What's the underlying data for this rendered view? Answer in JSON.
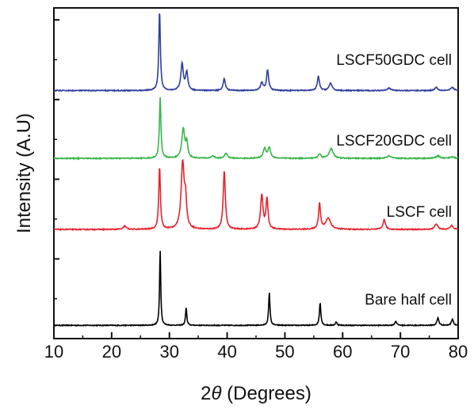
{
  "chart_data": {
    "type": "line",
    "xlabel": "2θ (Degrees)",
    "xlabel_prefix": "2",
    "xlabel_italic": "θ",
    "xlabel_suffix": " (Degrees)",
    "ylabel": "Intensity (A.U)",
    "xlim": [
      10,
      80
    ],
    "x_ticks": [
      10,
      20,
      30,
      40,
      50,
      60,
      70,
      80
    ],
    "y_ticks_shown_as_labels": false,
    "grid": false,
    "legend": "labels above each trace",
    "series": [
      {
        "name": "Bare half cell",
        "color": "#000000",
        "baseline_fraction": 0.04,
        "noise": 0.005,
        "peaks": [
          {
            "x": 28.4,
            "h": 0.93,
            "w": 0.12
          },
          {
            "x": 32.9,
            "h": 0.22,
            "w": 0.13
          },
          {
            "x": 47.3,
            "h": 0.4,
            "w": 0.14
          },
          {
            "x": 56.1,
            "h": 0.28,
            "w": 0.15
          },
          {
            "x": 58.9,
            "h": 0.04,
            "w": 0.18
          },
          {
            "x": 69.2,
            "h": 0.05,
            "w": 0.2
          },
          {
            "x": 76.5,
            "h": 0.09,
            "w": 0.2
          },
          {
            "x": 79.0,
            "h": 0.08,
            "w": 0.2
          }
        ]
      },
      {
        "name": "LSCF cell",
        "color": "#e8212a",
        "baseline_fraction": 0.33,
        "noise": 0.006,
        "peaks": [
          {
            "x": 22.3,
            "h": 0.04,
            "w": 0.3
          },
          {
            "x": 28.3,
            "h": 0.77,
            "w": 0.17
          },
          {
            "x": 32.3,
            "h": 0.82,
            "w": 0.32
          },
          {
            "x": 32.8,
            "h": 0.3,
            "w": 0.2
          },
          {
            "x": 39.5,
            "h": 0.72,
            "w": 0.22
          },
          {
            "x": 46.0,
            "h": 0.42,
            "w": 0.25
          },
          {
            "x": 46.9,
            "h": 0.38,
            "w": 0.2
          },
          {
            "x": 56.0,
            "h": 0.32,
            "w": 0.2
          },
          {
            "x": 57.5,
            "h": 0.14,
            "w": 0.5
          },
          {
            "x": 67.2,
            "h": 0.12,
            "w": 0.25
          },
          {
            "x": 76.2,
            "h": 0.07,
            "w": 0.3
          },
          {
            "x": 78.9,
            "h": 0.05,
            "w": 0.3
          }
        ]
      },
      {
        "name": "LSCF20GDC cell",
        "color": "#39b54a",
        "baseline_fraction": 0.545,
        "noise": 0.006,
        "peaks": [
          {
            "x": 28.4,
            "h": 0.75,
            "w": 0.16
          },
          {
            "x": 32.4,
            "h": 0.36,
            "w": 0.3
          },
          {
            "x": 33.0,
            "h": 0.18,
            "w": 0.2
          },
          {
            "x": 37.5,
            "h": 0.03,
            "w": 0.3
          },
          {
            "x": 39.8,
            "h": 0.06,
            "w": 0.3
          },
          {
            "x": 46.5,
            "h": 0.12,
            "w": 0.3
          },
          {
            "x": 47.3,
            "h": 0.13,
            "w": 0.25
          },
          {
            "x": 56.0,
            "h": 0.05,
            "w": 0.3
          },
          {
            "x": 58.0,
            "h": 0.12,
            "w": 0.4
          },
          {
            "x": 68.0,
            "h": 0.03,
            "w": 0.4
          },
          {
            "x": 76.5,
            "h": 0.03,
            "w": 0.4
          },
          {
            "x": 79.0,
            "h": 0.02,
            "w": 0.4
          }
        ]
      },
      {
        "name": "LSCF50GDC cell",
        "color": "#2e3d9e",
        "baseline_fraction": 0.75,
        "noise": 0.006,
        "peaks": [
          {
            "x": 28.3,
            "h": 0.98,
            "w": 0.16
          },
          {
            "x": 32.2,
            "h": 0.33,
            "w": 0.25
          },
          {
            "x": 33.0,
            "h": 0.22,
            "w": 0.22
          },
          {
            "x": 39.5,
            "h": 0.15,
            "w": 0.22
          },
          {
            "x": 46.0,
            "h": 0.1,
            "w": 0.25
          },
          {
            "x": 47.0,
            "h": 0.25,
            "w": 0.22
          },
          {
            "x": 55.8,
            "h": 0.17,
            "w": 0.22
          },
          {
            "x": 57.9,
            "h": 0.09,
            "w": 0.3
          },
          {
            "x": 68.0,
            "h": 0.03,
            "w": 0.4
          },
          {
            "x": 76.2,
            "h": 0.04,
            "w": 0.3
          },
          {
            "x": 79.0,
            "h": 0.04,
            "w": 0.3
          }
        ]
      }
    ]
  }
}
